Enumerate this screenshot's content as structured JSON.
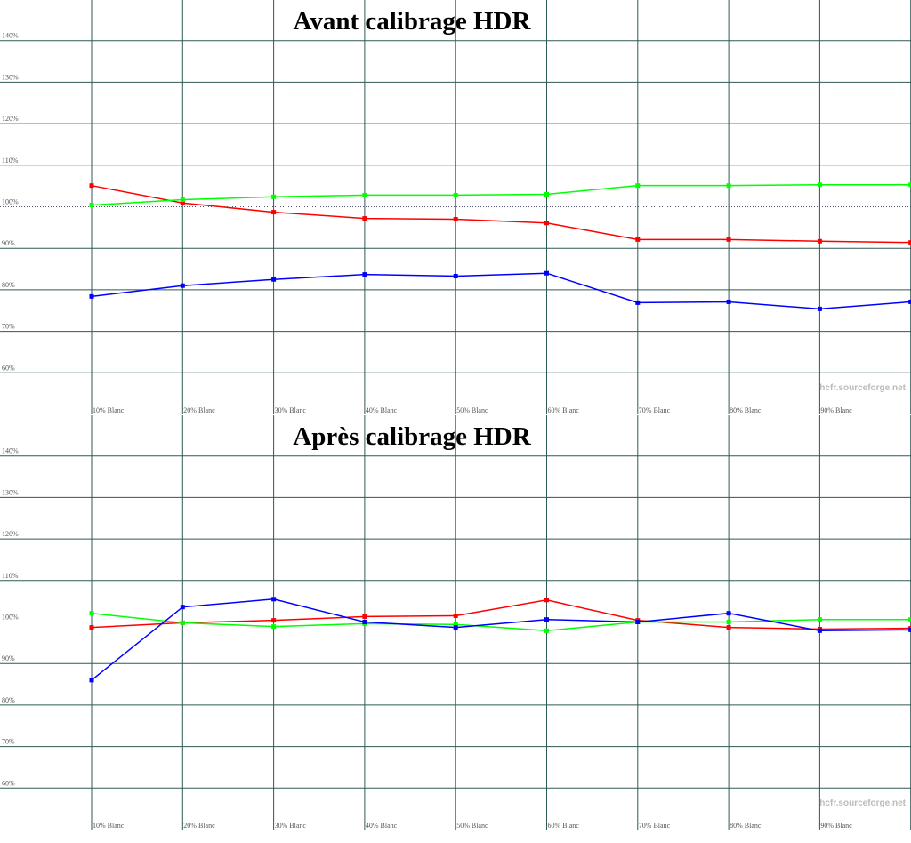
{
  "chart_data": [
    {
      "type": "line",
      "title": "Avant calibrage HDR",
      "annotation": "hcfr.sourceforge.net",
      "categories": [
        "10% Blanc",
        "20% Blanc",
        "30% Blanc",
        "40% Blanc",
        "50% Blanc",
        "60% Blanc",
        "70% Blanc",
        "80% Blanc",
        "90% Blanc",
        null
      ],
      "series": [
        {
          "name": "Rouge",
          "color": "#ff0000",
          "values": [
            105.1,
            100.9,
            98.7,
            97.2,
            97.0,
            96.1,
            92.1,
            92.1,
            91.7,
            91.4
          ]
        },
        {
          "name": "Vert",
          "color": "#00ff00",
          "values": [
            100.4,
            101.7,
            102.4,
            102.8,
            102.8,
            103.0,
            105.1,
            105.1,
            105.3,
            105.3
          ]
        },
        {
          "name": "Bleu",
          "color": "#0000ff",
          "values": [
            78.4,
            81.0,
            82.5,
            83.7,
            83.3,
            84.0,
            76.9,
            77.1,
            75.4,
            77.1
          ]
        }
      ],
      "ylim": [
        50,
        150
      ],
      "yticks": [
        {
          "value": 60,
          "label": "60%"
        },
        {
          "value": 70,
          "label": "70%"
        },
        {
          "value": 80,
          "label": "80%"
        },
        {
          "value": 90,
          "label": "90%"
        },
        {
          "value": 100,
          "label": "100%"
        },
        {
          "value": 110,
          "label": "110%"
        },
        {
          "value": 120,
          "label": "120%"
        },
        {
          "value": 130,
          "label": "130%"
        },
        {
          "value": 140,
          "label": "140%"
        }
      ],
      "reference_line": 100,
      "grid": true
    },
    {
      "type": "line",
      "title": "Après calibrage HDR",
      "annotation": "hcfr.sourceforge.net",
      "categories": [
        "10% Blanc",
        "20% Blanc",
        "30% Blanc",
        "40% Blanc",
        "50% Blanc",
        "60% Blanc",
        "70% Blanc",
        "80% Blanc",
        "90% Blanc",
        null
      ],
      "series": [
        {
          "name": "Rouge",
          "color": "#ff0000",
          "values": [
            98.7,
            99.8,
            100.4,
            101.3,
            101.5,
            105.3,
            100.4,
            98.7,
            98.3,
            98.5
          ]
        },
        {
          "name": "Vert",
          "color": "#00ff00",
          "values": [
            102.1,
            99.8,
            98.9,
            99.6,
            99.4,
            97.9,
            100.0,
            100.0,
            100.6,
            100.6
          ]
        },
        {
          "name": "Bleu",
          "color": "#0000ff",
          "values": [
            86.0,
            103.6,
            105.5,
            100.0,
            98.7,
            100.6,
            100.0,
            102.1,
            97.9,
            98.1
          ]
        }
      ],
      "ylim": [
        50,
        150
      ],
      "yticks": [
        {
          "value": 60,
          "label": "60%"
        },
        {
          "value": 70,
          "label": "70%"
        },
        {
          "value": 80,
          "label": "80%"
        },
        {
          "value": 90,
          "label": "90%"
        },
        {
          "value": 100,
          "label": "100%"
        },
        {
          "value": 110,
          "label": "110%"
        },
        {
          "value": 120,
          "label": "120%"
        },
        {
          "value": 130,
          "label": "130%"
        },
        {
          "value": 140,
          "label": "140%"
        }
      ],
      "reference_line": 100,
      "grid": true
    }
  ]
}
